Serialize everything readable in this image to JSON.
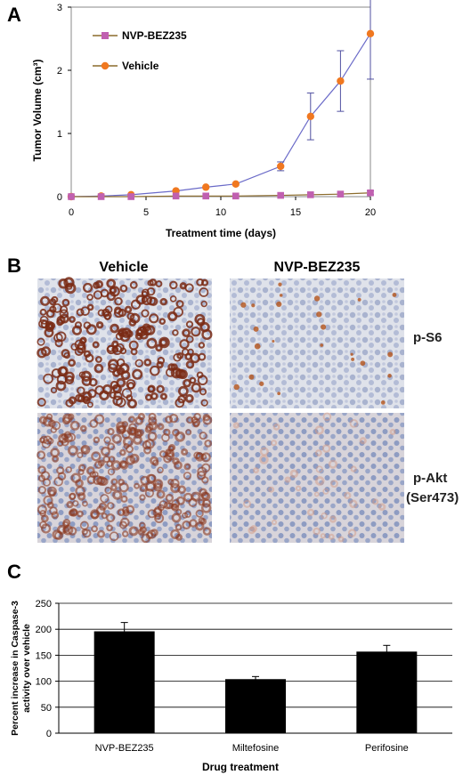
{
  "panels": {
    "a": "A",
    "b": "B",
    "c": "C"
  },
  "chart_data": [
    {
      "type": "line",
      "xlabel": "Treatment time (days)",
      "ylabel": "Tumor Volume (cm³)",
      "xlim": [
        0,
        20
      ],
      "ylim": [
        0,
        3
      ],
      "xticks": [
        "0",
        "5",
        "10",
        "15",
        "20"
      ],
      "yticks": [
        "0",
        "1",
        "2",
        "3"
      ],
      "grid": false,
      "legend_position": "top-left",
      "series": [
        {
          "name": "NVP-BEZ235",
          "color": "#c060b0",
          "marker": "square",
          "x": [
            0,
            2,
            4,
            7,
            9,
            11,
            14,
            16,
            18,
            20
          ],
          "y": [
            0.0,
            0.0,
            0.0,
            0.01,
            0.01,
            0.01,
            0.02,
            0.03,
            0.04,
            0.06
          ],
          "err": [
            0,
            0,
            0,
            0,
            0,
            0,
            0,
            0,
            0,
            0.03
          ]
        },
        {
          "name": "Vehicle",
          "color": "#f07820",
          "marker": "circle",
          "x": [
            0,
            2,
            4,
            7,
            9,
            11,
            14,
            16,
            18,
            20
          ],
          "y": [
            0.0,
            0.01,
            0.03,
            0.09,
            0.15,
            0.2,
            0.48,
            1.27,
            1.83,
            2.58
          ],
          "err": [
            0,
            0,
            0,
            0,
            0,
            0,
            0.07,
            0.37,
            0.48,
            0.72
          ]
        }
      ]
    },
    {
      "type": "bar",
      "xlabel": "Drug treatment",
      "ylabel": "Percent increase in Caspase-3 activity over vehicle",
      "ylim": [
        0,
        250
      ],
      "yticks": [
        "0",
        "50",
        "100",
        "150",
        "200",
        "250"
      ],
      "grid": true,
      "categories": [
        "NVP-BEZ235",
        "Miltefosine",
        "Perifosine"
      ],
      "values": [
        196,
        104,
        157
      ],
      "err": [
        17,
        5,
        12
      ],
      "bar_color": "#000000"
    }
  ],
  "micrographs": {
    "columns": [
      "Vehicle",
      "NVP-BEZ235"
    ],
    "rows": [
      "p-S6",
      "p-Akt\n(Ser473)"
    ],
    "row1_label": "p-S6",
    "row2_label_line1": "p-Akt",
    "row2_label_line2": "(Ser473)",
    "stain_color": "#7a2a14",
    "counter_stain_color": "#9aa8c8"
  }
}
